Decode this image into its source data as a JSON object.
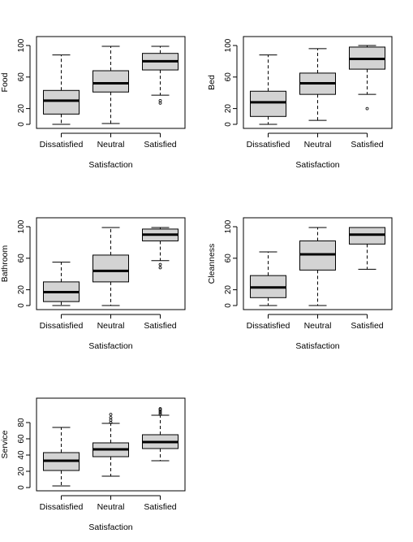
{
  "chart_data": [
    {
      "type": "boxplot",
      "xlabel": "Satisfaction",
      "ylabel": "Food",
      "ylim": [
        0,
        100
      ],
      "yticks": [
        0,
        20,
        60,
        100
      ],
      "categories": [
        "Dissatisfied",
        "Neutral",
        "Satisfied"
      ],
      "boxes": [
        {
          "min": 0,
          "q1": 13,
          "median": 30,
          "q3": 43,
          "max": 88,
          "outliers": []
        },
        {
          "min": 1,
          "q1": 41,
          "median": 52,
          "q3": 68,
          "max": 99,
          "outliers": []
        },
        {
          "min": 37,
          "q1": 69,
          "median": 80,
          "q3": 90,
          "max": 99,
          "outliers": [
            30,
            27
          ]
        }
      ]
    },
    {
      "type": "boxplot",
      "xlabel": "Satisfaction",
      "ylabel": "Bed",
      "ylim": [
        0,
        100
      ],
      "yticks": [
        0,
        20,
        60,
        100
      ],
      "categories": [
        "Dissatisfied",
        "Neutral",
        "Satisfied"
      ],
      "boxes": [
        {
          "min": 0,
          "q1": 10,
          "median": 28,
          "q3": 42,
          "max": 88,
          "outliers": []
        },
        {
          "min": 5,
          "q1": 38,
          "median": 52,
          "q3": 65,
          "max": 96,
          "outliers": []
        },
        {
          "min": 38,
          "q1": 70,
          "median": 83,
          "q3": 98,
          "max": 100,
          "outliers": [
            20
          ]
        }
      ]
    },
    {
      "type": "boxplot",
      "xlabel": "Satisfaction",
      "ylabel": "Bathroom",
      "ylim": [
        0,
        100
      ],
      "yticks": [
        0,
        20,
        60,
        100
      ],
      "categories": [
        "Dissatisfied",
        "Neutral",
        "Satisfied"
      ],
      "boxes": [
        {
          "min": 0,
          "q1": 5,
          "median": 17,
          "q3": 30,
          "max": 55,
          "outliers": []
        },
        {
          "min": 0,
          "q1": 30,
          "median": 44,
          "q3": 64,
          "max": 99,
          "outliers": []
        },
        {
          "min": 57,
          "q1": 82,
          "median": 90,
          "q3": 97,
          "max": 99,
          "outliers": [
            52,
            48
          ]
        }
      ]
    },
    {
      "type": "boxplot",
      "xlabel": "Satisfaction",
      "ylabel": "Cleanness",
      "ylim": [
        0,
        100
      ],
      "yticks": [
        0,
        20,
        60,
        100
      ],
      "categories": [
        "Dissatisfied",
        "Neutral",
        "Satisfied"
      ],
      "boxes": [
        {
          "min": 0,
          "q1": 10,
          "median": 23,
          "q3": 38,
          "max": 68,
          "outliers": []
        },
        {
          "min": 0,
          "q1": 45,
          "median": 65,
          "q3": 82,
          "max": 99,
          "outliers": []
        },
        {
          "min": 46,
          "q1": 78,
          "median": 90,
          "q3": 99,
          "max": 99,
          "outliers": []
        }
      ]
    },
    {
      "type": "boxplot",
      "xlabel": "Satisfaction",
      "ylabel": "Service",
      "ylim": [
        0,
        97
      ],
      "yticks": [
        0,
        20,
        40,
        60,
        80
      ],
      "categories": [
        "Dissatisfied",
        "Neutral",
        "Satisfied"
      ],
      "boxes": [
        {
          "min": 2,
          "q1": 21,
          "median": 33,
          "q3": 43,
          "max": 74,
          "outliers": []
        },
        {
          "min": 14,
          "q1": 38,
          "median": 47,
          "q3": 55,
          "max": 79,
          "outliers": [
            80,
            83,
            86,
            90
          ]
        },
        {
          "min": 33,
          "q1": 48,
          "median": 56,
          "q3": 65,
          "max": 89,
          "outliers": [
            90,
            92,
            94,
            96,
            97
          ]
        }
      ]
    }
  ]
}
